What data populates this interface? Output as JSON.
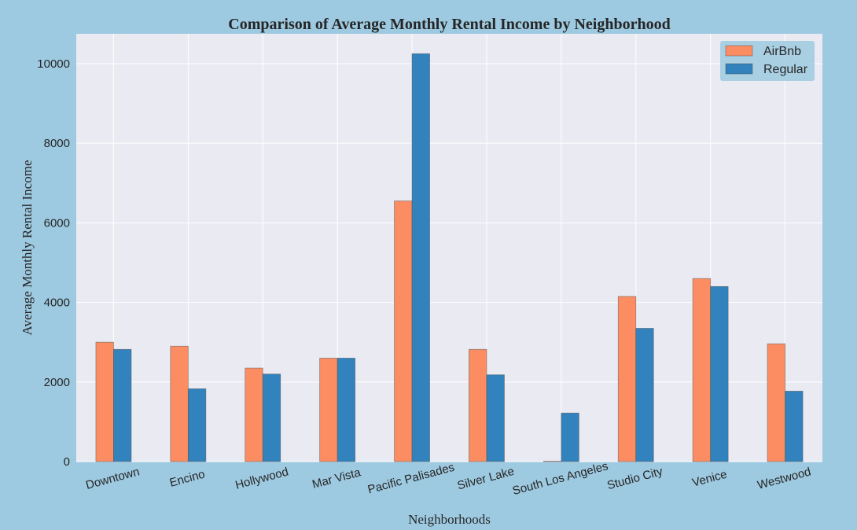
{
  "chart_data": {
    "type": "bar",
    "title": "Comparison of Average Monthly Rental Income by Neighborhood",
    "xlabel": "Neighborhoods",
    "ylabel": "Average Monthly Rental Income",
    "categories": [
      "Downtown",
      "Encino",
      "Hollywood",
      "Mar Vista",
      "Pacific Palisades",
      "Silver Lake",
      "South Los Angeles",
      "Studio City",
      "Venice",
      "Westwood"
    ],
    "series": [
      {
        "name": "AirBnb",
        "color": "#fc8d62",
        "values": [
          3000,
          2900,
          2350,
          2600,
          6550,
          2820,
          10,
          4150,
          4600,
          2960
        ]
      },
      {
        "name": "Regular",
        "color": "#3182bd",
        "values": [
          2820,
          1830,
          2200,
          2600,
          10250,
          2180,
          1220,
          3350,
          4400,
          1770
        ]
      }
    ],
    "ylim": [
      0,
      10750
    ],
    "yticks": [
      0,
      2000,
      4000,
      6000,
      8000,
      10000
    ],
    "grid": true,
    "legend_position": "top-right",
    "plot_background": "#eaeaf2",
    "figure_background": "#9ecae1"
  }
}
